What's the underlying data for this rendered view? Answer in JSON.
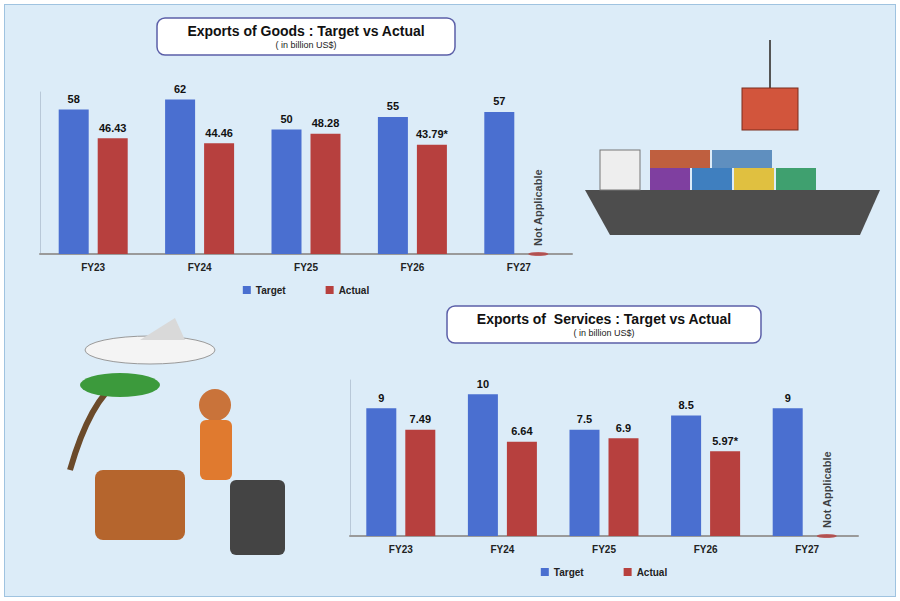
{
  "chart_data": [
    {
      "type": "bar",
      "title": "Exports of Goods : Target vs Actual",
      "subtitle": "( in billion US$)",
      "categories": [
        "FY23",
        "FY24",
        "FY25",
        "FY26",
        "FY27"
      ],
      "series": [
        {
          "name": "Target",
          "color": "#4a6fd0",
          "values": [
            58,
            62,
            50,
            55,
            57
          ]
        },
        {
          "name": "Actual",
          "color": "#b7403e",
          "values": [
            46.43,
            44.46,
            48.28,
            43.79,
            null
          ],
          "value_labels": [
            "46.43",
            "44.46",
            "48.28",
            "43.79*",
            null
          ]
        }
      ],
      "ylim": [
        0,
        65
      ],
      "grid": false,
      "legend": "bottom",
      "data_labels": true,
      "tick_labels": "x",
      "annotations": [
        {
          "text": "Not Applicable",
          "category": "FY27",
          "series": "Actual"
        }
      ]
    },
    {
      "type": "bar",
      "title": "Exports of  Services : Target vs Actual",
      "subtitle": "( in billion US$)",
      "categories": [
        "FY23",
        "FY24",
        "FY25",
        "FY26",
        "FY27"
      ],
      "series": [
        {
          "name": "Target",
          "color": "#4a6fd0",
          "values": [
            9,
            10,
            7.5,
            8.5,
            9
          ]
        },
        {
          "name": "Actual",
          "color": "#b7403e",
          "values": [
            7.49,
            6.64,
            6.9,
            5.97,
            null
          ],
          "value_labels": [
            "7.49",
            "6.64",
            "6.9",
            "5.97*",
            null
          ]
        }
      ],
      "ylim": [
        0,
        11
      ],
      "grid": false,
      "legend": "bottom",
      "data_labels": true,
      "tick_labels": "x",
      "annotations": [
        {
          "text": "Not Applicable",
          "category": "FY27",
          "series": "Actual"
        }
      ]
    }
  ]
}
